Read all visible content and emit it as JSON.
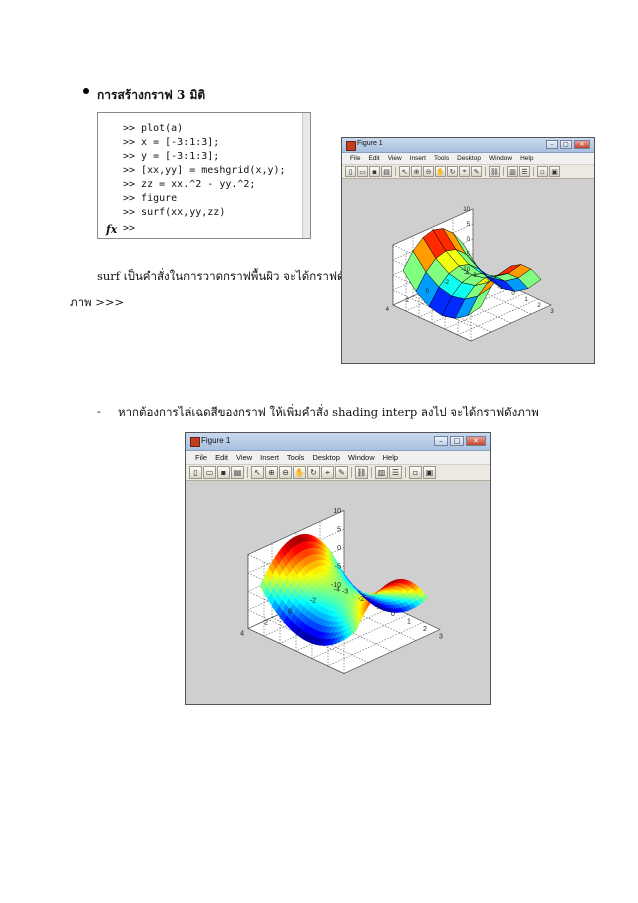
{
  "section": {
    "heading": "การสร้างกราฟ 3 มิติ"
  },
  "code": {
    "lines": [
      ">> plot(a)",
      ">> x = [-3:1:3];",
      ">> y = [-3:1:3];",
      ">> [xx,yy] = meshgrid(x,y);",
      ">> zz = xx.^2 - yy.^2;",
      ">> figure",
      ">> surf(xx,yy,zz)",
      ">> "
    ],
    "prompt_icon": "fx"
  },
  "text": {
    "surf_line1": "surf เป็นคำสั่งในการวาดกราฟพื้นผิว จะได้กราฟดัง",
    "surf_line2": "ภาพ  >>>",
    "dash": "-",
    "shading_line": "หากต้องการไล่เฉดสีของกราฟ ให้เพิ่มคำสั่ง shading interp ลงไป จะได้กราฟดังภาพ"
  },
  "figure1": {
    "title": "Figure 1",
    "menu": [
      "File",
      "Edit",
      "View",
      "Insert",
      "Tools",
      "Desktop",
      "Window",
      "Help"
    ],
    "toolbar_icons": [
      "new-icon",
      "open-icon",
      "save-icon",
      "print-icon",
      "arrow-icon",
      "zoom-in-icon",
      "zoom-out-icon",
      "pan-icon",
      "rotate-icon",
      "datacursor-icon",
      "brush-icon",
      "link-icon",
      "colorbar-icon",
      "legend-icon",
      "hide-plottools-icon",
      "show-plottools-icon"
    ],
    "z_ticks": [
      "10",
      "5",
      "0",
      "-5",
      "-10"
    ],
    "y_ticks": [
      "4",
      "2",
      "0",
      "-2",
      "-4"
    ],
    "x_ticks": [
      "-3",
      "-2",
      "-1",
      "0",
      "1",
      "2",
      "3"
    ],
    "shading": "faceted"
  },
  "figure2": {
    "title": "Figure 1",
    "menu": [
      "File",
      "Edit",
      "View",
      "Insert",
      "Tools",
      "Desktop",
      "Window",
      "Help"
    ],
    "toolbar_icons": [
      "new-icon",
      "open-icon",
      "save-icon",
      "print-icon",
      "arrow-icon",
      "zoom-in-icon",
      "zoom-out-icon",
      "pan-icon",
      "rotate-icon",
      "datacursor-icon",
      "brush-icon",
      "link-icon",
      "colorbar-icon",
      "legend-icon",
      "hide-plottools-icon",
      "show-plottools-icon"
    ],
    "z_ticks": [
      "10",
      "5",
      "0",
      "-5",
      "-10"
    ],
    "y_ticks": [
      "4",
      "2",
      "0",
      "-2",
      "-4"
    ],
    "x_ticks": [
      "-3",
      "-2",
      "-1",
      "0",
      "1",
      "2",
      "3"
    ],
    "shading": "interp"
  }
}
